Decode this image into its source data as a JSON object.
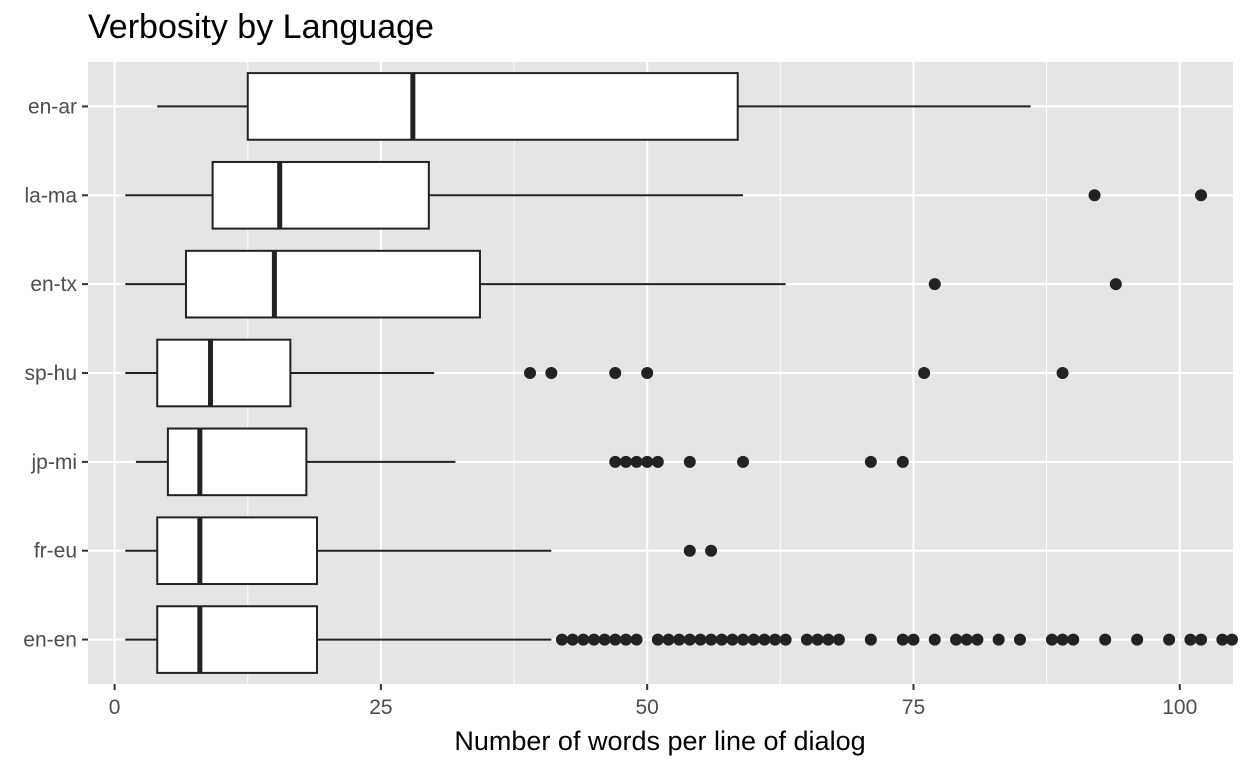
{
  "chart_data": {
    "type": "boxplot",
    "title": "Verbosity by Language",
    "xlabel": "Number of words per line of dialog",
    "ylabel": "",
    "xlim": [
      -2.5,
      105
    ],
    "x_ticks": [
      0,
      25,
      50,
      75,
      100
    ],
    "x_tick_labels": [
      "0",
      "25",
      "50",
      "75",
      "100"
    ],
    "grid": true,
    "orientation": "horizontal",
    "colors": {
      "panel": "#e5e5e5",
      "grid": "#ffffff",
      "box_fill": "#ffffff",
      "box_line": "#222222",
      "outlier": "#222222"
    },
    "categories": [
      "en-ar",
      "la-ma",
      "en-tx",
      "sp-hu",
      "jp-mi",
      "fr-eu",
      "en-en"
    ],
    "boxes": [
      {
        "label": "en-ar",
        "min": 4,
        "q1": 12.5,
        "median": 28,
        "q3": 58.5,
        "max": 86,
        "outliers": []
      },
      {
        "label": "la-ma",
        "min": 1,
        "q1": 9.2,
        "median": 15.5,
        "q3": 29.5,
        "max": 59,
        "outliers": [
          92,
          102
        ]
      },
      {
        "label": "en-tx",
        "min": 1,
        "q1": 6.7,
        "median": 15,
        "q3": 34.3,
        "max": 63,
        "outliers": [
          77,
          94
        ]
      },
      {
        "label": "sp-hu",
        "min": 1,
        "q1": 4,
        "median": 9,
        "q3": 16.5,
        "max": 30,
        "outliers": [
          39,
          41,
          47,
          50,
          76,
          89
        ]
      },
      {
        "label": "jp-mi",
        "min": 2,
        "q1": 5,
        "median": 8,
        "q3": 18,
        "max": 32,
        "outliers": [
          47,
          48,
          49,
          50,
          51,
          54,
          59,
          71,
          74
        ]
      },
      {
        "label": "fr-eu",
        "min": 1,
        "q1": 4,
        "median": 8,
        "q3": 19,
        "max": 41,
        "outliers": [
          54,
          56
        ]
      },
      {
        "label": "en-en",
        "min": 1,
        "q1": 4,
        "median": 8,
        "q3": 19,
        "max": 41,
        "outliers": [
          42,
          43,
          44,
          45,
          46,
          47,
          48,
          49,
          51,
          52,
          53,
          54,
          55,
          56,
          57,
          58,
          59,
          60,
          61,
          62,
          63,
          65,
          66,
          67,
          68,
          71,
          74,
          75,
          77,
          79,
          80,
          81,
          83,
          85,
          88,
          89,
          90,
          93,
          96,
          99,
          101,
          102,
          104,
          105
        ]
      }
    ]
  }
}
